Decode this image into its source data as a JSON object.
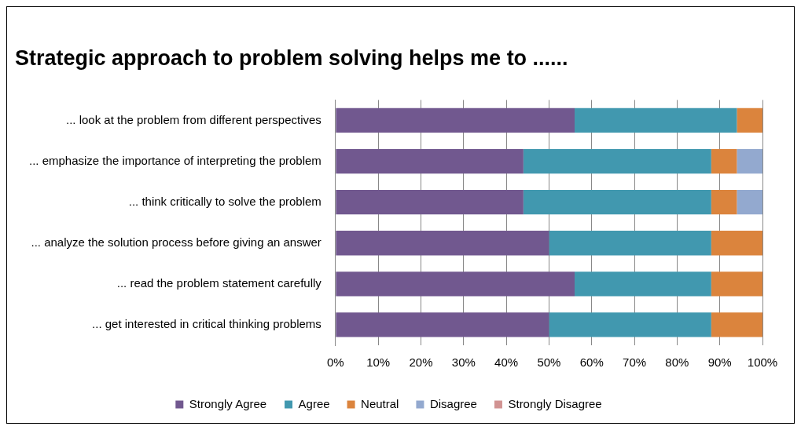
{
  "chart_data": {
    "type": "bar",
    "orientation": "horizontal",
    "stacked": true,
    "title": "Strategic approach to problem solving helps me to ......",
    "categories": [
      "... look at the problem from different perspectives",
      "... emphasize the importance of interpreting the problem",
      "... think critically to solve the problem",
      "... analyze the solution process before giving an answer",
      "... read the problem statement carefully",
      "... get interested in critical thinking problems"
    ],
    "series": [
      {
        "name": "Strongly Agree",
        "color": "#71588f",
        "values": [
          56,
          44,
          44,
          50,
          56,
          50
        ]
      },
      {
        "name": "Agree",
        "color": "#4198af",
        "values": [
          38,
          44,
          44,
          38,
          32,
          38
        ]
      },
      {
        "name": "Neutral",
        "color": "#db843d",
        "values": [
          6,
          6,
          6,
          12,
          12,
          12
        ]
      },
      {
        "name": "Disagree",
        "color": "#93a9cf",
        "values": [
          0,
          6,
          6,
          0,
          0,
          0
        ]
      },
      {
        "name": "Strongly Disagree",
        "color": "#d19392",
        "values": [
          0,
          0,
          0,
          0,
          0,
          0
        ]
      }
    ],
    "xlim": [
      0,
      100
    ],
    "xticks": [
      {
        "value": 0,
        "label": "0%"
      },
      {
        "value": 10,
        "label": "10%"
      },
      {
        "value": 20,
        "label": "20%"
      },
      {
        "value": 30,
        "label": "30%"
      },
      {
        "value": 40,
        "label": "40%"
      },
      {
        "value": 50,
        "label": "50%"
      },
      {
        "value": 60,
        "label": "60%"
      },
      {
        "value": 70,
        "label": "70%"
      },
      {
        "value": 80,
        "label": "80%"
      },
      {
        "value": 90,
        "label": "90%"
      },
      {
        "value": 100,
        "label": "100%"
      }
    ],
    "grid": "x",
    "legend": "bottom"
  }
}
